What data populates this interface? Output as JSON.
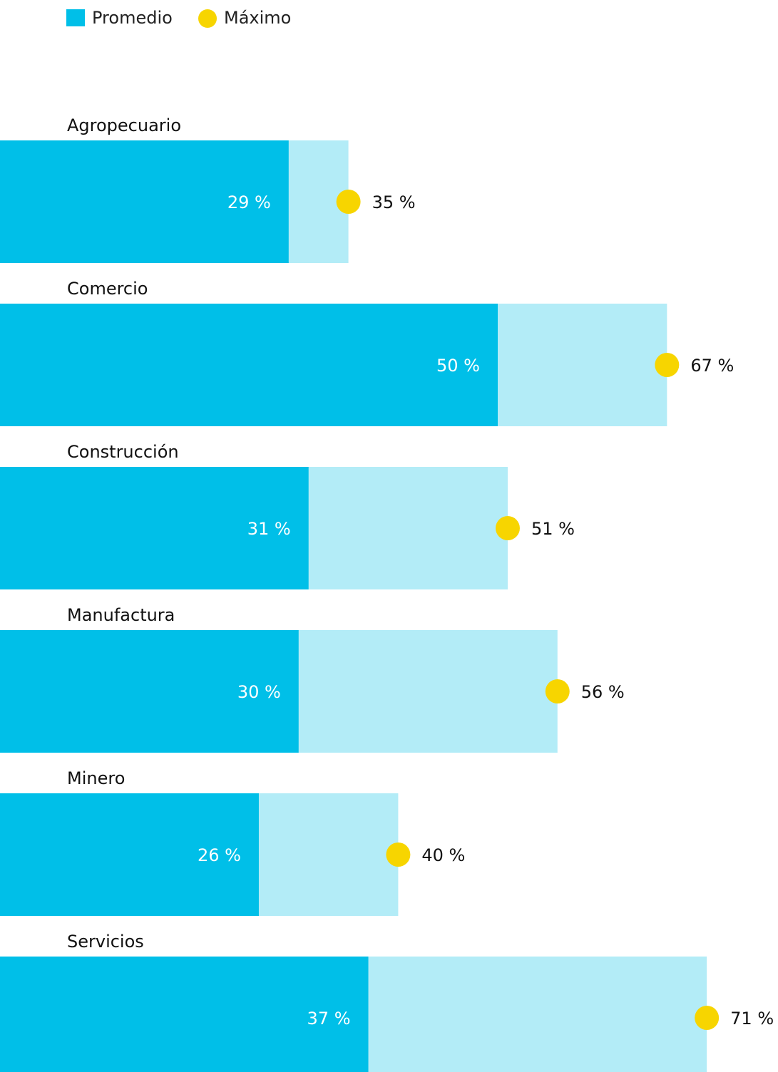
{
  "chart_data": {
    "type": "bar",
    "orientation": "horizontal",
    "categories": [
      "Agropecuario",
      "Comercio",
      "Construcción",
      "Manufactura",
      "Minero",
      "Servicios"
    ],
    "series": [
      {
        "name": "Promedio",
        "color": "#00bfe8",
        "values": [
          29,
          50,
          31,
          30,
          26,
          37
        ],
        "value_labels": [
          "29 %",
          "50 %",
          "31 %",
          "30 %",
          "26 %",
          "37 %"
        ]
      },
      {
        "name": "Máximo",
        "color": "#f7d500",
        "bar_color": "#b3ecf7",
        "values": [
          35,
          67,
          51,
          56,
          40,
          71
        ],
        "value_labels": [
          "35 %",
          "67 %",
          "51 %",
          "56 %",
          "40 %",
          "71 %"
        ]
      }
    ],
    "legend": "top-left"
  }
}
